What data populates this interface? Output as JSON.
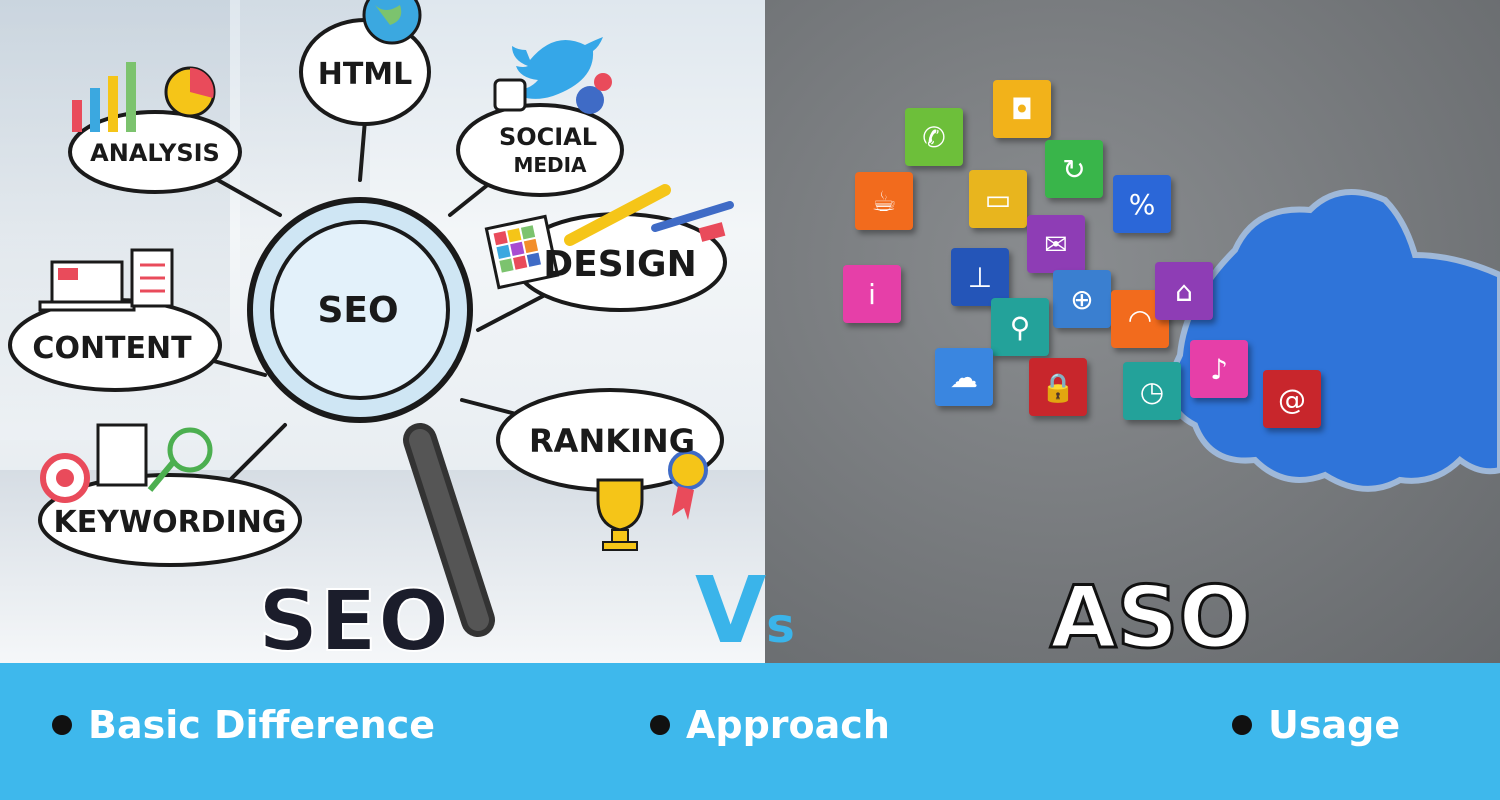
{
  "left_panel": {
    "bubbles": {
      "html": "HTML",
      "analysis": "ANALYSIS",
      "social_line1": "SOCIAL",
      "social_line2": "MEDIA",
      "seo_lens": "SEO",
      "design": "DESIGN",
      "content": "CONTENT",
      "ranking": "RANKING",
      "keywording": "KEYWORDING"
    }
  },
  "titles": {
    "seo": "SEO",
    "vs_v": "V",
    "vs_s": "s",
    "aso": "ASO"
  },
  "topics": [
    {
      "label": "Basic Difference"
    },
    {
      "label": "Approach"
    },
    {
      "label": "Usage"
    }
  ],
  "app_icons": [
    {
      "name": "phone-icon",
      "glyph": "✆",
      "color": "#6dbf3a"
    },
    {
      "name": "camera-icon",
      "glyph": "◘",
      "color": "#f2b21a"
    },
    {
      "name": "refresh-icon",
      "glyph": "↻",
      "color": "#39b54a"
    },
    {
      "name": "coffee-icon",
      "glyph": "☕",
      "color": "#f26b1d"
    },
    {
      "name": "chat-icon",
      "glyph": "▭",
      "color": "#e8b51e"
    },
    {
      "name": "percent-icon",
      "glyph": "%",
      "color": "#2b67d8"
    },
    {
      "name": "mail-icon",
      "glyph": "✉",
      "color": "#8e3db5"
    },
    {
      "name": "info-icon",
      "glyph": "i",
      "color": "#e63fa8"
    },
    {
      "name": "antenna-icon",
      "glyph": "⊥",
      "color": "#2455b8"
    },
    {
      "name": "globe-icon",
      "glyph": "⊕",
      "color": "#3a7fd0"
    },
    {
      "name": "wifi-icon",
      "glyph": "◠",
      "color": "#f26b1d"
    },
    {
      "name": "home-icon",
      "glyph": "⌂",
      "color": "#8e3db5"
    },
    {
      "name": "search-icon",
      "glyph": "⚲",
      "color": "#23a29a"
    },
    {
      "name": "cloud-icon",
      "glyph": "☁",
      "color": "#3a86e0"
    },
    {
      "name": "lock-icon",
      "glyph": "🔒",
      "color": "#c8262c"
    },
    {
      "name": "clock-icon",
      "glyph": "◷",
      "color": "#23a29a"
    },
    {
      "name": "music-icon",
      "glyph": "♪",
      "color": "#e63fa8"
    },
    {
      "name": "swirl-icon",
      "glyph": "@",
      "color": "#c8262c"
    }
  ]
}
